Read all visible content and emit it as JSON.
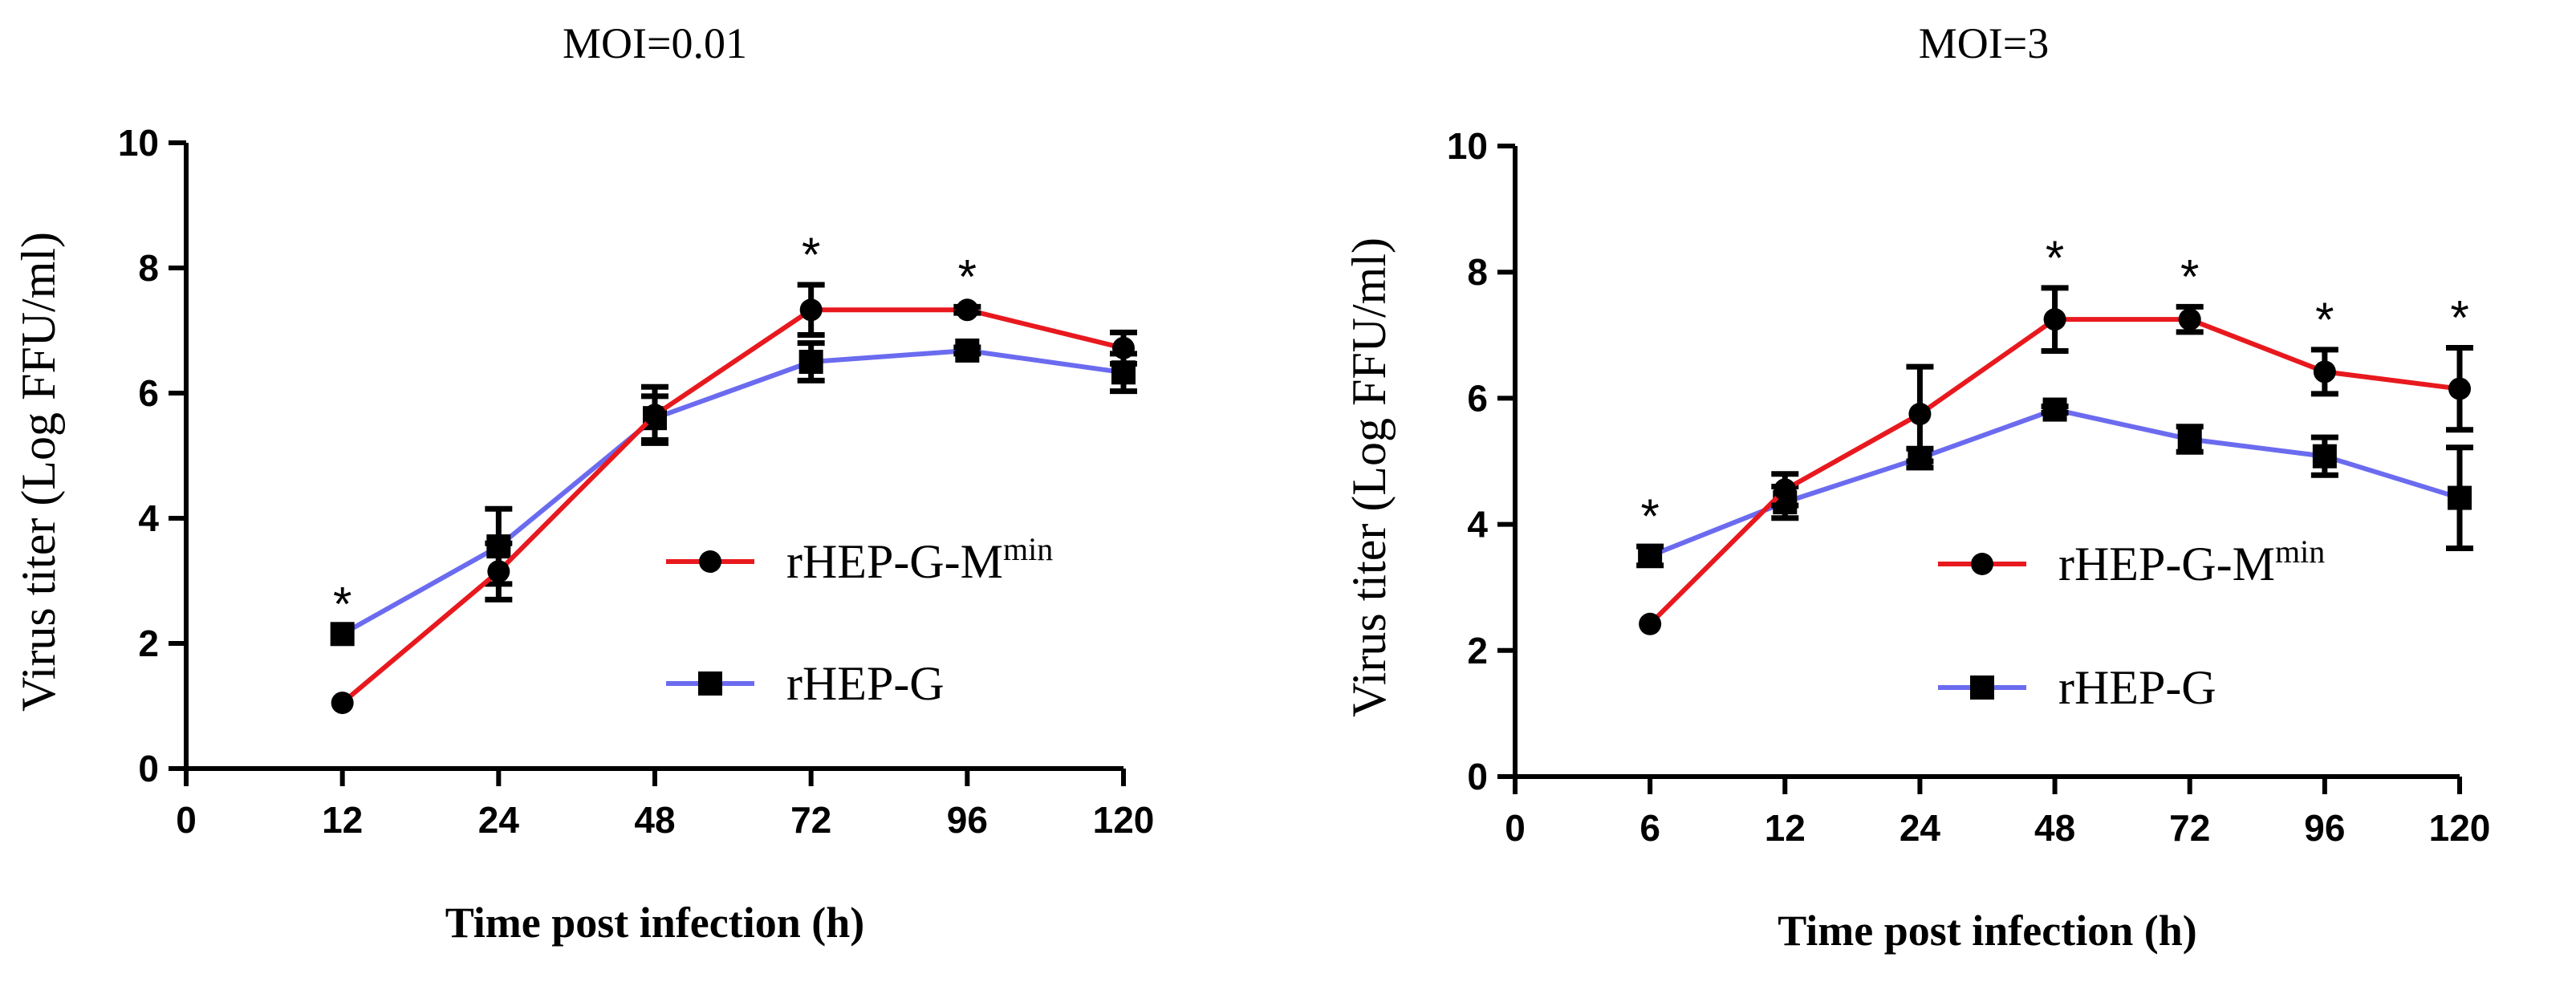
{
  "chart_data": [
    {
      "type": "line",
      "title": "MOI=0.01",
      "xlabel": "Time post infection (h)",
      "ylabel": "Virus titer (Log FFU/ml)",
      "x_ticks": [
        "0",
        "12",
        "24",
        "48",
        "72",
        "96",
        "120"
      ],
      "categories": [
        "12",
        "24",
        "48",
        "72",
        "96",
        "120"
      ],
      "ylim": [
        0,
        10
      ],
      "y_ticks": [
        "0",
        "2",
        "4",
        "6",
        "8",
        "10"
      ],
      "legend_position": "right-middle",
      "significance_marker": "*",
      "significant_at": [
        "12",
        "72",
        "96"
      ],
      "series": [
        {
          "name": "rHEP-G-M",
          "name_superscript": "min",
          "color": "#e8191e",
          "marker": "circle",
          "values": [
            1.05,
            3.15,
            5.65,
            7.33,
            7.33,
            6.72
          ],
          "errors": [
            0.0,
            0.45,
            0.45,
            0.4,
            0.05,
            0.25
          ]
        },
        {
          "name": "rHEP-G",
          "color": "#6b6bf0",
          "marker": "square",
          "values": [
            2.15,
            3.55,
            5.6,
            6.5,
            6.68,
            6.33
          ],
          "errors": [
            0.0,
            0.6,
            0.35,
            0.3,
            0.05,
            0.3
          ]
        }
      ]
    },
    {
      "type": "line",
      "title": "MOI=3",
      "xlabel": "Time post infection (h)",
      "ylabel": "Virus titer (Log FFU/ml)",
      "x_ticks": [
        "0",
        "6",
        "12",
        "24",
        "48",
        "72",
        "96",
        "120"
      ],
      "categories": [
        "6",
        "12",
        "24",
        "48",
        "72",
        "96",
        "120"
      ],
      "ylim": [
        0,
        10
      ],
      "y_ticks": [
        "0",
        "2",
        "4",
        "6",
        "8",
        "10"
      ],
      "legend_position": "right-middle",
      "significance_marker": "*",
      "significant_at": [
        "6",
        "48",
        "72",
        "96",
        "120"
      ],
      "series": [
        {
          "name": "rHEP-G-M",
          "name_superscript": "min",
          "color": "#e8191e",
          "marker": "circle",
          "values": [
            2.42,
            4.55,
            5.75,
            7.25,
            7.25,
            6.42,
            6.15
          ],
          "errors": [
            0.0,
            0.25,
            0.75,
            0.5,
            0.2,
            0.35,
            0.65
          ]
        },
        {
          "name": "rHEP-G",
          "color": "#6b6bf0",
          "marker": "square",
          "values": [
            3.5,
            4.35,
            5.05,
            5.82,
            5.35,
            5.08,
            4.42
          ],
          "errors": [
            0.15,
            0.25,
            0.15,
            0.05,
            0.2,
            0.3,
            0.8
          ]
        }
      ]
    }
  ]
}
